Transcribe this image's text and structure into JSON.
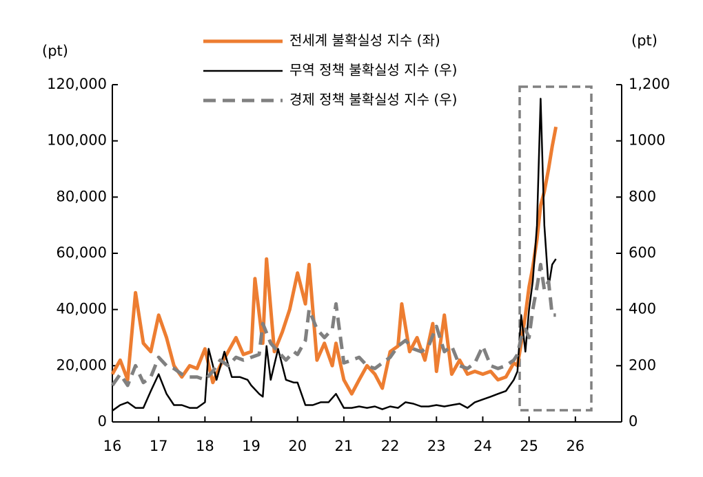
{
  "chart_data": {
    "type": "line",
    "y_label": "(pt)",
    "y2_label": "(pt)",
    "xlim": [
      16,
      27
    ],
    "xticks": [
      16,
      17,
      18,
      19,
      20,
      21,
      22,
      23,
      24,
      25,
      26
    ],
    "ylim": [
      0,
      120000
    ],
    "yticks": [
      0,
      {
        "value": 20000,
        "label": "20,000"
      },
      {
        "value": 40000,
        "label": "40,000"
      },
      {
        "value": 60000,
        "label": "60,000"
      },
      {
        "value": 80000,
        "label": "80,000"
      },
      {
        "value": 100000,
        "label": "100,000"
      },
      {
        "value": 120000,
        "label": "120,000"
      }
    ],
    "y2lim": [
      0,
      1200
    ],
    "y2ticks": [
      0,
      200,
      400,
      600,
      800,
      1000,
      {
        "value": 1200,
        "label": "1,200"
      }
    ],
    "series": [
      {
        "name": "전세계 불확실성 지수 (좌)",
        "color": "#ed7d31",
        "line_style": "solid",
        "x": [
          16.0,
          16.17,
          16.33,
          16.5,
          16.67,
          16.83,
          17.0,
          17.17,
          17.33,
          17.5,
          17.67,
          17.83,
          18.0,
          18.17,
          18.33,
          18.5,
          18.67,
          18.83,
          19.0,
          19.08,
          19.25,
          19.33,
          19.5,
          19.67,
          19.83,
          20.0,
          20.17,
          20.25,
          20.42,
          20.58,
          20.75,
          20.83,
          21.0,
          21.17,
          21.33,
          21.5,
          21.67,
          21.83,
          22.0,
          22.17,
          22.25,
          22.42,
          22.58,
          22.75,
          22.92,
          23.0,
          23.17,
          23.33,
          23.5,
          23.67,
          23.83,
          24.0,
          24.17,
          24.33,
          24.5,
          24.67,
          24.75,
          24.83,
          24.92,
          25.0,
          25.08,
          25.17,
          25.25,
          25.33,
          25.42,
          25.5,
          25.58
        ],
        "values": [
          17000,
          22000,
          15000,
          46000,
          28000,
          25000,
          38000,
          30000,
          20000,
          16000,
          20000,
          19000,
          26000,
          14000,
          20000,
          25000,
          30000,
          24000,
          25000,
          51000,
          28000,
          58000,
          25000,
          32000,
          40000,
          53000,
          42000,
          56000,
          22000,
          28000,
          20000,
          28000,
          15000,
          10000,
          15000,
          20000,
          17000,
          12000,
          25000,
          27000,
          42000,
          25000,
          30000,
          22000,
          35000,
          18000,
          38000,
          17000,
          22000,
          17000,
          18000,
          17000,
          18000,
          15000,
          16000,
          21000,
          20000,
          28000,
          38000,
          48000,
          55000,
          65000,
          77000,
          82000,
          90000,
          98000,
          105000
        ]
      },
      {
        "name": "무역 정책 불확실성 지수 (우)",
        "color": "#000000",
        "line_style": "solid",
        "axis": "y2",
        "x": [
          16.0,
          16.17,
          16.33,
          16.5,
          16.67,
          16.83,
          17.0,
          17.17,
          17.33,
          17.5,
          17.67,
          17.83,
          18.0,
          18.08,
          18.25,
          18.42,
          18.58,
          18.75,
          18.92,
          19.0,
          19.17,
          19.25,
          19.33,
          19.42,
          19.58,
          19.75,
          19.92,
          20.0,
          20.17,
          20.33,
          20.5,
          20.67,
          20.83,
          21.0,
          21.17,
          21.33,
          21.5,
          21.67,
          21.83,
          22.0,
          22.17,
          22.33,
          22.5,
          22.67,
          22.83,
          23.0,
          23.17,
          23.33,
          23.5,
          23.67,
          23.83,
          24.0,
          24.17,
          24.33,
          24.5,
          24.67,
          24.75,
          24.83,
          24.92,
          25.0,
          25.08,
          25.17,
          25.25,
          25.33,
          25.42,
          25.5,
          25.58
        ],
        "values": [
          40,
          60,
          70,
          50,
          50,
          110,
          170,
          100,
          60,
          60,
          50,
          50,
          70,
          260,
          150,
          250,
          160,
          160,
          150,
          130,
          100,
          90,
          270,
          150,
          260,
          150,
          140,
          140,
          60,
          60,
          70,
          70,
          100,
          50,
          50,
          55,
          50,
          55,
          45,
          55,
          50,
          70,
          65,
          55,
          55,
          60,
          55,
          60,
          65,
          50,
          70,
          80,
          90,
          100,
          110,
          150,
          180,
          380,
          250,
          400,
          500,
          700,
          1150,
          700,
          480,
          560,
          580
        ]
      },
      {
        "name": "경제 정책 불확실성 지수 (우)",
        "color": "#808080",
        "line_style": "dashed",
        "axis": "y2",
        "x": [
          16.0,
          16.17,
          16.33,
          16.5,
          16.67,
          16.83,
          17.0,
          17.17,
          17.33,
          17.5,
          17.67,
          17.83,
          18.0,
          18.17,
          18.33,
          18.5,
          18.67,
          18.83,
          19.0,
          19.17,
          19.25,
          19.42,
          19.58,
          19.75,
          19.92,
          20.0,
          20.17,
          20.25,
          20.42,
          20.58,
          20.75,
          20.83,
          21.0,
          21.17,
          21.33,
          21.5,
          21.67,
          21.83,
          22.0,
          22.17,
          22.33,
          22.5,
          22.67,
          22.83,
          23.0,
          23.17,
          23.33,
          23.5,
          23.67,
          23.83,
          24.0,
          24.17,
          24.33,
          24.5,
          24.67,
          24.75,
          24.83,
          24.92,
          25.0,
          25.08,
          25.17,
          25.25,
          25.33,
          25.42,
          25.5,
          25.58
        ],
        "values": [
          130,
          170,
          130,
          200,
          140,
          160,
          230,
          200,
          190,
          170,
          160,
          160,
          150,
          180,
          220,
          200,
          230,
          220,
          230,
          240,
          350,
          280,
          250,
          220,
          250,
          240,
          290,
          400,
          330,
          300,
          330,
          420,
          210,
          220,
          230,
          200,
          190,
          210,
          230,
          270,
          290,
          260,
          250,
          270,
          340,
          250,
          270,
          200,
          190,
          210,
          270,
          200,
          190,
          200,
          220,
          240,
          300,
          330,
          300,
          400,
          480,
          560,
          470,
          500,
          380,
          380
        ]
      }
    ]
  }
}
